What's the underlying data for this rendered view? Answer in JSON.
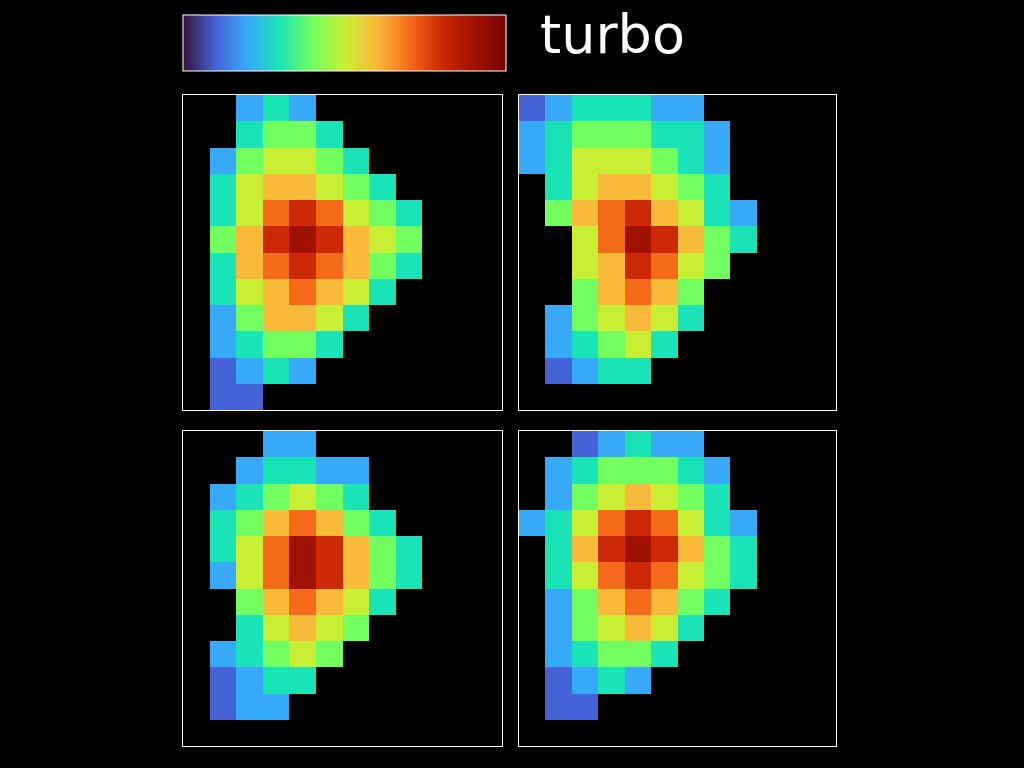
{
  "chart_data": {
    "type": "heatmap",
    "colorbar": {
      "label": "turbo",
      "range": [
        0,
        1
      ],
      "ticks": []
    },
    "tick_labels": false,
    "xlim": [
      0,
      12
    ],
    "ylim": [
      0,
      12
    ],
    "panels": [
      {
        "cells": [
          [
            null,
            0.1,
            0.1,
            null,
            null,
            null,
            null,
            null,
            null,
            null,
            null,
            null
          ],
          [
            null,
            0.1,
            0.2,
            0.3,
            0.2,
            null,
            null,
            null,
            null,
            null,
            null,
            null
          ],
          [
            null,
            0.2,
            0.3,
            0.4,
            0.4,
            0.3,
            null,
            null,
            null,
            null,
            null,
            null
          ],
          [
            null,
            0.2,
            0.4,
            0.6,
            0.6,
            0.5,
            0.3,
            null,
            null,
            null,
            null,
            null
          ],
          [
            null,
            0.3,
            0.5,
            0.6,
            0.7,
            0.6,
            0.5,
            0.3,
            null,
            null,
            null,
            null
          ],
          [
            null,
            0.3,
            0.6,
            0.7,
            0.8,
            0.7,
            0.6,
            0.4,
            0.3,
            null,
            null,
            null
          ],
          [
            null,
            0.4,
            0.6,
            0.8,
            0.9,
            0.8,
            0.6,
            0.5,
            0.4,
            null,
            null,
            null
          ],
          [
            null,
            0.3,
            0.5,
            0.7,
            0.8,
            0.7,
            0.5,
            0.4,
            0.3,
            null,
            null,
            null
          ],
          [
            null,
            0.3,
            0.5,
            0.6,
            0.6,
            0.5,
            0.4,
            0.3,
            null,
            null,
            null,
            null
          ],
          [
            null,
            0.2,
            0.4,
            0.5,
            0.5,
            0.4,
            0.3,
            null,
            null,
            null,
            null,
            null
          ],
          [
            null,
            null,
            0.3,
            0.4,
            0.4,
            0.3,
            null,
            null,
            null,
            null,
            null,
            null
          ],
          [
            null,
            null,
            0.2,
            0.3,
            0.2,
            null,
            null,
            null,
            null,
            null,
            null,
            null
          ]
        ]
      },
      {
        "cells": [
          [
            null,
            null,
            null,
            null,
            null,
            null,
            null,
            null,
            null,
            null,
            null,
            null
          ],
          [
            null,
            0.1,
            0.2,
            0.3,
            0.3,
            null,
            null,
            null,
            null,
            null,
            null,
            null
          ],
          [
            null,
            0.2,
            0.3,
            0.4,
            0.5,
            0.3,
            null,
            null,
            null,
            null,
            null,
            null
          ],
          [
            null,
            0.2,
            0.4,
            0.5,
            0.6,
            0.5,
            0.3,
            null,
            null,
            null,
            null,
            null
          ],
          [
            null,
            null,
            0.4,
            0.6,
            0.7,
            0.6,
            0.4,
            null,
            null,
            null,
            null,
            null
          ],
          [
            null,
            null,
            0.5,
            0.6,
            0.8,
            0.7,
            0.5,
            0.4,
            null,
            null,
            null,
            null
          ],
          [
            null,
            null,
            0.5,
            0.7,
            0.9,
            0.8,
            0.6,
            0.4,
            0.3,
            null,
            null,
            null
          ],
          [
            null,
            0.4,
            0.6,
            0.7,
            0.8,
            0.6,
            0.5,
            0.3,
            0.2,
            null,
            null,
            null
          ],
          [
            null,
            0.3,
            0.5,
            0.6,
            0.6,
            0.5,
            0.4,
            0.3,
            null,
            null,
            null,
            null
          ],
          [
            0.2,
            0.3,
            0.5,
            0.5,
            0.5,
            0.4,
            0.3,
            0.2,
            null,
            null,
            null,
            null
          ],
          [
            0.2,
            0.3,
            0.4,
            0.4,
            0.4,
            0.3,
            0.3,
            0.2,
            null,
            null,
            null,
            null
          ],
          [
            0.1,
            0.2,
            0.3,
            0.3,
            0.3,
            0.2,
            0.2,
            null,
            null,
            null,
            null,
            null
          ]
        ]
      },
      {
        "cells": [
          [
            null,
            null,
            null,
            null,
            null,
            null,
            null,
            null,
            null,
            null,
            null,
            null
          ],
          [
            null,
            0.1,
            0.2,
            0.2,
            null,
            null,
            null,
            null,
            null,
            null,
            null,
            null
          ],
          [
            null,
            0.1,
            0.2,
            0.3,
            0.3,
            null,
            null,
            null,
            null,
            null,
            null,
            null
          ],
          [
            null,
            0.2,
            0.3,
            0.4,
            0.5,
            0.4,
            null,
            null,
            null,
            null,
            null,
            null
          ],
          [
            null,
            null,
            0.3,
            0.5,
            0.6,
            0.5,
            0.4,
            null,
            null,
            null,
            null,
            null
          ],
          [
            null,
            null,
            0.4,
            0.6,
            0.7,
            0.6,
            0.5,
            0.3,
            null,
            null,
            null,
            null
          ],
          [
            null,
            0.2,
            0.5,
            0.7,
            0.9,
            0.8,
            0.6,
            0.4,
            0.3,
            null,
            null,
            null
          ],
          [
            null,
            0.3,
            0.5,
            0.7,
            0.9,
            0.8,
            0.6,
            0.4,
            0.3,
            null,
            null,
            null
          ],
          [
            null,
            0.3,
            0.4,
            0.6,
            0.7,
            0.6,
            0.4,
            0.3,
            null,
            null,
            null,
            null
          ],
          [
            null,
            0.2,
            0.3,
            0.4,
            0.5,
            0.4,
            0.3,
            null,
            null,
            null,
            null,
            null
          ],
          [
            null,
            null,
            0.2,
            0.3,
            0.3,
            0.2,
            0.2,
            null,
            null,
            null,
            null,
            null
          ],
          [
            null,
            null,
            null,
            0.2,
            0.2,
            null,
            null,
            null,
            null,
            null,
            null,
            null
          ]
        ]
      },
      {
        "cells": [
          [
            null,
            null,
            null,
            null,
            null,
            null,
            null,
            null,
            null,
            null,
            null,
            null
          ],
          [
            null,
            0.1,
            0.1,
            null,
            null,
            null,
            null,
            null,
            null,
            null,
            null,
            null
          ],
          [
            null,
            0.1,
            0.2,
            0.3,
            0.2,
            null,
            null,
            null,
            null,
            null,
            null,
            null
          ],
          [
            null,
            0.2,
            0.3,
            0.4,
            0.4,
            0.3,
            null,
            null,
            null,
            null,
            null,
            null
          ],
          [
            null,
            0.2,
            0.4,
            0.5,
            0.6,
            0.5,
            0.3,
            null,
            null,
            null,
            null,
            null
          ],
          [
            null,
            0.2,
            0.4,
            0.6,
            0.7,
            0.6,
            0.4,
            0.3,
            null,
            null,
            null,
            null
          ],
          [
            null,
            0.3,
            0.5,
            0.7,
            0.8,
            0.7,
            0.5,
            0.4,
            0.3,
            null,
            null,
            null
          ],
          [
            null,
            0.3,
            0.6,
            0.8,
            0.9,
            0.8,
            0.6,
            0.4,
            0.3,
            null,
            null,
            null
          ],
          [
            0.2,
            0.3,
            0.5,
            0.7,
            0.8,
            0.7,
            0.5,
            0.3,
            0.2,
            null,
            null,
            null
          ],
          [
            null,
            0.2,
            0.4,
            0.5,
            0.6,
            0.5,
            0.4,
            0.3,
            null,
            null,
            null,
            null
          ],
          [
            null,
            0.2,
            0.3,
            0.4,
            0.4,
            0.4,
            0.3,
            0.2,
            null,
            null,
            null,
            null
          ],
          [
            null,
            null,
            0.1,
            0.2,
            0.3,
            0.2,
            0.2,
            null,
            null,
            null,
            null,
            null
          ]
        ]
      }
    ]
  }
}
